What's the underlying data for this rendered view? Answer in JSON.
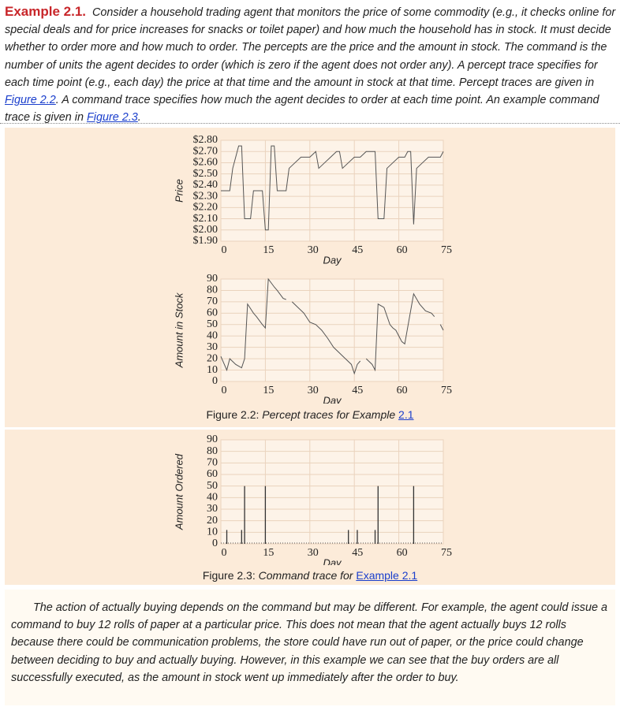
{
  "intro": {
    "heading": "Example 2.1.",
    "text_1": "Consider a household trading agent that monitors the price of some commodity (e.g., it checks online for special deals and for price increases for snacks or toilet paper) and how much the household has in stock. It must decide whether to order more and how much to order. The percepts are the price and the amount in stock. The command is the number of units the agent decides to order (which is zero if the agent does not order any). A percept trace specifies for each time point (e.g., each day) the price at that time and the amount in stock at that time. Percept traces are given in ",
    "link_1": "Figure 2.2",
    "text_2": ". A command trace specifies how much the agent decides to order at each time point. An example command trace is given in ",
    "link_2": "Figure 2.3",
    "text_3": "."
  },
  "caption_2_2": {
    "label": "Figure 2.2:",
    "text": "Percept traces for Example",
    "link": "2.1"
  },
  "caption_2_3": {
    "label": "Figure 2.3:",
    "text": "Command trace for",
    "link": "Example 2.1"
  },
  "closing": {
    "text": "The action of actually buying depends on the command but may be different. For example, the agent could issue a command to buy 12 rolls of paper at a particular price. This does not mean that the agent actually buys 12 rolls because there could be communication problems, the store could have run out of paper, or the price could change between deciding to buy and actually buying. However, in this example we can see that the buy orders are all successfully executed, as the amount in stock went up immediately after the order to buy."
  },
  "chart_data": [
    {
      "type": "line",
      "xlabel": "Day",
      "ylabel": "Price",
      "color": "#555555",
      "grid": true,
      "x": [
        0,
        3,
        4,
        5,
        6,
        7,
        8,
        10,
        11,
        14,
        15,
        16,
        17,
        18,
        19,
        22,
        23,
        25,
        27,
        30,
        32,
        33,
        35,
        37,
        39,
        40,
        41,
        43,
        45,
        47,
        49,
        52,
        53,
        55,
        56,
        58,
        60,
        62,
        63,
        64,
        65,
        66,
        68,
        70,
        74,
        75
      ],
      "values": [
        2.35,
        2.35,
        2.55,
        2.65,
        2.75,
        2.75,
        2.1,
        2.1,
        2.35,
        2.35,
        2.0,
        2.0,
        2.75,
        2.75,
        2.35,
        2.35,
        2.55,
        2.6,
        2.65,
        2.65,
        2.7,
        2.55,
        2.6,
        2.65,
        2.7,
        2.7,
        2.55,
        2.6,
        2.65,
        2.65,
        2.7,
        2.7,
        2.1,
        2.1,
        2.55,
        2.6,
        2.65,
        2.65,
        2.7,
        2.7,
        2.05,
        2.55,
        2.6,
        2.65,
        2.65,
        2.7
      ],
      "xlim": [
        0,
        75
      ],
      "xticks": [
        0,
        15,
        30,
        45,
        60,
        75
      ],
      "ylim": [
        1.9,
        2.8
      ],
      "yticks": [
        {
          "value": 1.9,
          "label": "$1.90"
        },
        {
          "value": 2.0,
          "label": "$2.00"
        },
        {
          "value": 2.1,
          "label": "$2.10"
        },
        {
          "value": 2.2,
          "label": "$2.20"
        },
        {
          "value": 2.3,
          "label": "$2.30"
        },
        {
          "value": 2.4,
          "label": "$2.40"
        },
        {
          "value": 2.5,
          "label": "$2.50"
        },
        {
          "value": 2.6,
          "label": "$2.60"
        },
        {
          "value": 2.7,
          "label": "$2.70"
        },
        {
          "value": 2.8,
          "label": "$2.80"
        }
      ]
    },
    {
      "type": "line",
      "xlabel": "Day",
      "ylabel": "Amount in Stock",
      "color": "#555555",
      "grid": true,
      "x": [
        0,
        2,
        3,
        5,
        7,
        8,
        9,
        11,
        12,
        14,
        15,
        16,
        18,
        19,
        21,
        22,
        23,
        24,
        26,
        28,
        30,
        32,
        34,
        36,
        38,
        40,
        42,
        44,
        45,
        46,
        47,
        48,
        49,
        51,
        52,
        53,
        55,
        57,
        58,
        59,
        60,
        61,
        62,
        65,
        67,
        69,
        71,
        72,
        73,
        74,
        75
      ],
      "values": [
        22,
        10,
        20,
        15,
        12,
        20,
        68,
        60,
        57,
        50,
        47,
        90,
        83,
        80,
        73,
        72,
        null,
        70,
        65,
        60,
        52,
        50,
        45,
        38,
        30,
        25,
        20,
        15,
        7,
        15,
        18,
        null,
        20,
        15,
        10,
        68,
        65,
        50,
        47,
        45,
        40,
        35,
        33,
        77,
        68,
        62,
        60,
        57,
        null,
        50,
        45
      ],
      "xlim": [
        0,
        75
      ],
      "xticks": [
        0,
        15,
        30,
        45,
        60,
        75
      ],
      "ylim": [
        0,
        90
      ],
      "yticks": [
        0,
        10,
        20,
        30,
        40,
        50,
        60,
        70,
        80,
        90
      ]
    },
    {
      "type": "bar",
      "xlabel": "Day",
      "ylabel": "Amount Ordered",
      "color": "#333333",
      "grid": true,
      "x": [
        2,
        7,
        8,
        15,
        43,
        46,
        52,
        53,
        65
      ],
      "values": [
        12,
        12,
        50,
        50,
        12,
        12,
        12,
        50,
        50
      ],
      "xlim": [
        0,
        75
      ],
      "xticks": [
        0,
        15,
        30,
        45,
        60,
        75
      ],
      "ylim": [
        0,
        90
      ],
      "yticks": [
        0,
        10,
        20,
        30,
        40,
        50,
        60,
        70,
        80,
        90
      ]
    }
  ]
}
